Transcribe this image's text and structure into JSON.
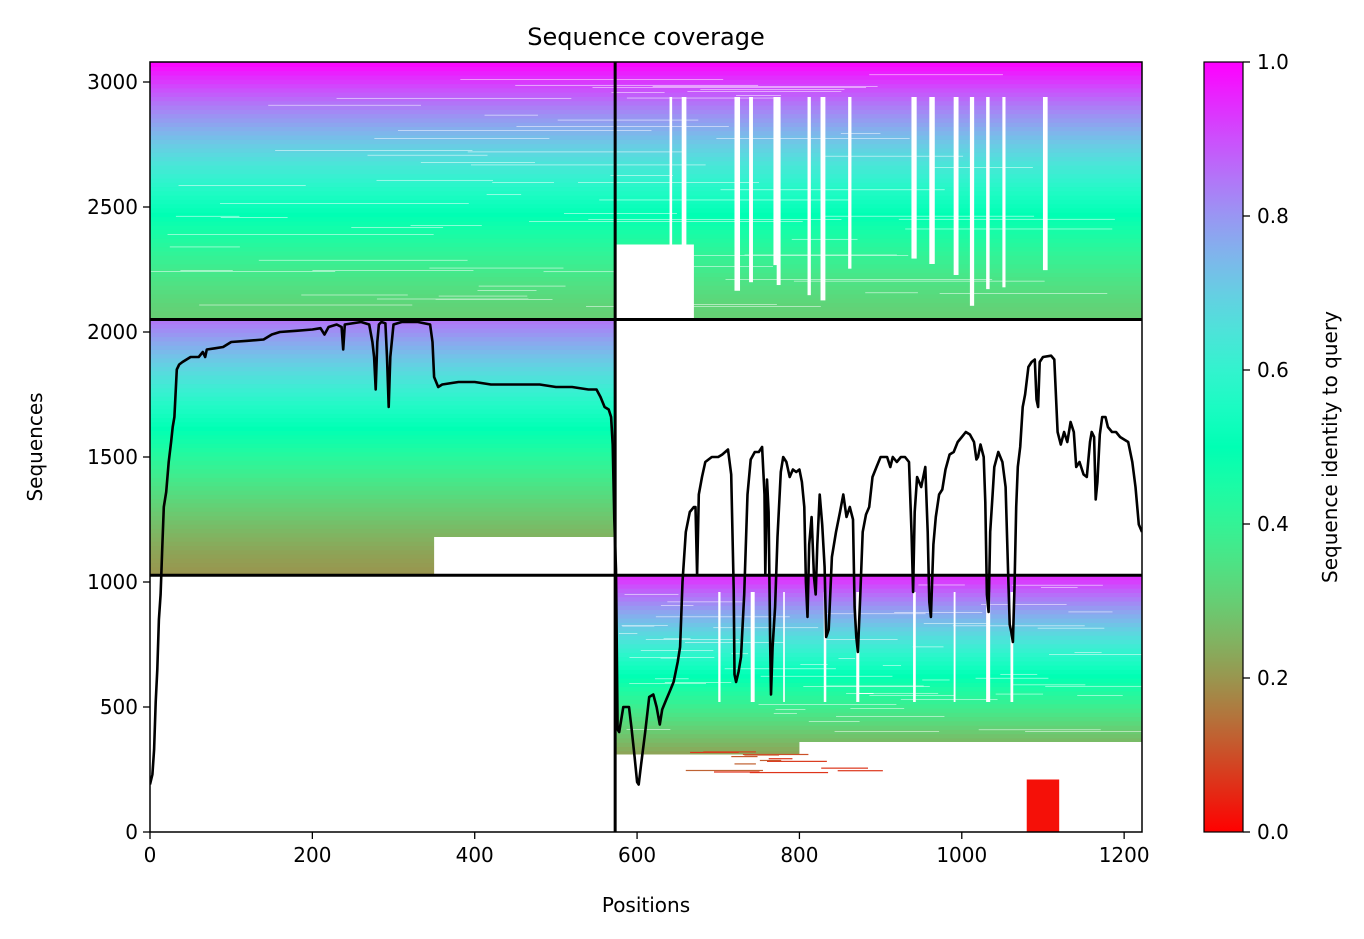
{
  "chart_data": {
    "type": "heatmap",
    "title": "Sequence coverage",
    "xlabel": "Positions",
    "ylabel": "Sequences",
    "xlim": [
      0,
      1222
    ],
    "ylim": [
      0,
      3080
    ],
    "x_ticks": [
      0,
      200,
      400,
      600,
      800,
      1000,
      1200
    ],
    "y_ticks": [
      0,
      500,
      1000,
      1500,
      2000,
      2500,
      3000
    ],
    "x_tick_labels": [
      "0",
      "200",
      "400",
      "600",
      "800",
      "1000",
      "1200"
    ],
    "y_tick_labels": [
      "0",
      "500",
      "1000",
      "1500",
      "2000",
      "2500",
      "3000"
    ],
    "colorbar": {
      "label": "Sequence identity to query",
      "colormap": "rainbow_r",
      "range": [
        0.0,
        1.0
      ],
      "ticks": [
        0.0,
        0.2,
        0.4,
        0.6,
        0.8,
        1.0
      ],
      "tick_labels": [
        "0.0",
        "0.2",
        "0.4",
        "0.6",
        "0.8",
        "1.0"
      ]
    },
    "chain_boundary_position": 573,
    "block_boundaries_sequences": [
      1027,
      2050
    ],
    "blocks": [
      {
        "name": "chain-A-only",
        "x": [
          0,
          573
        ],
        "y": [
          1027,
          2050
        ],
        "identity_top": 0.85,
        "identity_bottom": 0.2
      },
      {
        "name": "chain-B-only",
        "x": [
          573,
          1222
        ],
        "y": [
          0,
          1027
        ],
        "identity_top": 0.95,
        "identity_bottom": 0.05
      },
      {
        "name": "paired-A",
        "x": [
          0,
          573
        ],
        "y": [
          2050,
          3080
        ],
        "identity_top": 1.0,
        "identity_bottom": 0.3
      },
      {
        "name": "paired-B",
        "x": [
          573,
          1222
        ],
        "y": [
          2050,
          3080
        ],
        "identity_top": 1.0,
        "identity_bottom": 0.3
      }
    ],
    "coverage_line": {
      "color": "#000000",
      "points": [
        [
          0,
          190
        ],
        [
          3,
          230
        ],
        [
          5,
          330
        ],
        [
          7,
          520
        ],
        [
          9,
          650
        ],
        [
          11,
          850
        ],
        [
          13,
          950
        ],
        [
          15,
          1130
        ],
        [
          17,
          1300
        ],
        [
          20,
          1360
        ],
        [
          23,
          1480
        ],
        [
          26,
          1560
        ],
        [
          28,
          1620
        ],
        [
          30,
          1660
        ],
        [
          33,
          1850
        ],
        [
          36,
          1870
        ],
        [
          40,
          1880
        ],
        [
          50,
          1900
        ],
        [
          60,
          1900
        ],
        [
          65,
          1920
        ],
        [
          68,
          1900
        ],
        [
          70,
          1930
        ],
        [
          80,
          1935
        ],
        [
          90,
          1940
        ],
        [
          100,
          1960
        ],
        [
          120,
          1965
        ],
        [
          140,
          1970
        ],
        [
          150,
          1990
        ],
        [
          160,
          2000
        ],
        [
          180,
          2005
        ],
        [
          200,
          2010
        ],
        [
          210,
          2015
        ],
        [
          215,
          1990
        ],
        [
          220,
          2020
        ],
        [
          230,
          2030
        ],
        [
          236,
          2020
        ],
        [
          238,
          1930
        ],
        [
          240,
          2030
        ],
        [
          260,
          2040
        ],
        [
          270,
          2030
        ],
        [
          274,
          1960
        ],
        [
          276,
          1900
        ],
        [
          278,
          1770
        ],
        [
          280,
          1960
        ],
        [
          282,
          2030
        ],
        [
          285,
          2040
        ],
        [
          290,
          2035
        ],
        [
          292,
          1900
        ],
        [
          294,
          1700
        ],
        [
          296,
          1900
        ],
        [
          300,
          2030
        ],
        [
          310,
          2040
        ],
        [
          330,
          2040
        ],
        [
          345,
          2030
        ],
        [
          348,
          1960
        ],
        [
          350,
          1820
        ],
        [
          355,
          1780
        ],
        [
          360,
          1790
        ],
        [
          380,
          1800
        ],
        [
          400,
          1800
        ],
        [
          420,
          1790
        ],
        [
          450,
          1790
        ],
        [
          480,
          1790
        ],
        [
          500,
          1780
        ],
        [
          520,
          1780
        ],
        [
          540,
          1770
        ],
        [
          550,
          1770
        ],
        [
          555,
          1740
        ],
        [
          560,
          1700
        ],
        [
          565,
          1690
        ],
        [
          568,
          1660
        ],
        [
          570,
          1550
        ],
        [
          572,
          1250
        ],
        [
          574,
          1050
        ],
        [
          576,
          410
        ],
        [
          578,
          400
        ],
        [
          583,
          500
        ],
        [
          590,
          500
        ],
        [
          593,
          420
        ],
        [
          597,
          300
        ],
        [
          600,
          200
        ],
        [
          602,
          190
        ],
        [
          605,
          270
        ],
        [
          610,
          400
        ],
        [
          615,
          540
        ],
        [
          620,
          550
        ],
        [
          624,
          500
        ],
        [
          628,
          430
        ],
        [
          631,
          490
        ],
        [
          636,
          530
        ],
        [
          640,
          560
        ],
        [
          645,
          600
        ],
        [
          650,
          680
        ],
        [
          653,
          740
        ],
        [
          656,
          1000
        ],
        [
          660,
          1200
        ],
        [
          665,
          1280
        ],
        [
          670,
          1300
        ],
        [
          672,
          1300
        ],
        [
          674,
          1030
        ],
        [
          676,
          1350
        ],
        [
          680,
          1420
        ],
        [
          684,
          1480
        ],
        [
          688,
          1490
        ],
        [
          692,
          1500
        ],
        [
          700,
          1500
        ],
        [
          705,
          1510
        ],
        [
          712,
          1530
        ],
        [
          716,
          1430
        ],
        [
          719,
          970
        ],
        [
          720,
          630
        ],
        [
          722,
          600
        ],
        [
          725,
          640
        ],
        [
          728,
          700
        ],
        [
          732,
          950
        ],
        [
          736,
          1350
        ],
        [
          740,
          1490
        ],
        [
          745,
          1520
        ],
        [
          750,
          1520
        ],
        [
          754,
          1540
        ],
        [
          757,
          1350
        ],
        [
          758,
          1030
        ],
        [
          760,
          1410
        ],
        [
          762,
          1280
        ],
        [
          764,
          750
        ],
        [
          765,
          550
        ],
        [
          767,
          740
        ],
        [
          770,
          900
        ],
        [
          773,
          1180
        ],
        [
          777,
          1440
        ],
        [
          780,
          1500
        ],
        [
          784,
          1480
        ],
        [
          788,
          1420
        ],
        [
          792,
          1450
        ],
        [
          796,
          1440
        ],
        [
          800,
          1450
        ],
        [
          803,
          1400
        ],
        [
          806,
          1300
        ],
        [
          808,
          1000
        ],
        [
          810,
          860
        ],
        [
          812,
          1150
        ],
        [
          815,
          1260
        ],
        [
          818,
          1020
        ],
        [
          820,
          950
        ],
        [
          822,
          1150
        ],
        [
          825,
          1350
        ],
        [
          828,
          1230
        ],
        [
          831,
          1060
        ],
        [
          833,
          780
        ],
        [
          836,
          810
        ],
        [
          840,
          1100
        ],
        [
          845,
          1200
        ],
        [
          850,
          1280
        ],
        [
          854,
          1350
        ],
        [
          858,
          1260
        ],
        [
          862,
          1300
        ],
        [
          866,
          1250
        ],
        [
          868,
          900
        ],
        [
          870,
          780
        ],
        [
          872,
          720
        ],
        [
          875,
          950
        ],
        [
          878,
          1200
        ],
        [
          882,
          1270
        ],
        [
          886,
          1300
        ],
        [
          890,
          1420
        ],
        [
          895,
          1460
        ],
        [
          900,
          1500
        ],
        [
          908,
          1500
        ],
        [
          912,
          1460
        ],
        [
          915,
          1500
        ],
        [
          920,
          1480
        ],
        [
          925,
          1500
        ],
        [
          930,
          1500
        ],
        [
          935,
          1480
        ],
        [
          938,
          1200
        ],
        [
          940,
          960
        ],
        [
          942,
          1280
        ],
        [
          945,
          1420
        ],
        [
          950,
          1380
        ],
        [
          955,
          1460
        ],
        [
          958,
          1200
        ],
        [
          960,
          920
        ],
        [
          962,
          860
        ],
        [
          965,
          1150
        ],
        [
          968,
          1260
        ],
        [
          972,
          1350
        ],
        [
          976,
          1370
        ],
        [
          980,
          1450
        ],
        [
          985,
          1510
        ],
        [
          990,
          1520
        ],
        [
          995,
          1560
        ],
        [
          1000,
          1580
        ],
        [
          1005,
          1600
        ],
        [
          1010,
          1590
        ],
        [
          1015,
          1560
        ],
        [
          1018,
          1490
        ],
        [
          1020,
          1500
        ],
        [
          1023,
          1550
        ],
        [
          1027,
          1500
        ],
        [
          1029,
          1320
        ],
        [
          1031,
          950
        ],
        [
          1033,
          880
        ],
        [
          1035,
          1200
        ],
        [
          1038,
          1350
        ],
        [
          1040,
          1460
        ],
        [
          1045,
          1520
        ],
        [
          1050,
          1480
        ],
        [
          1054,
          1380
        ],
        [
          1057,
          1040
        ],
        [
          1059,
          830
        ],
        [
          1061,
          800
        ],
        [
          1063,
          760
        ],
        [
          1065,
          980
        ],
        [
          1067,
          1300
        ],
        [
          1069,
          1460
        ],
        [
          1072,
          1540
        ],
        [
          1075,
          1700
        ],
        [
          1078,
          1750
        ],
        [
          1082,
          1860
        ],
        [
          1086,
          1880
        ],
        [
          1090,
          1890
        ],
        [
          1092,
          1730
        ],
        [
          1094,
          1700
        ],
        [
          1096,
          1880
        ],
        [
          1100,
          1900
        ],
        [
          1110,
          1905
        ],
        [
          1114,
          1890
        ],
        [
          1118,
          1600
        ],
        [
          1122,
          1550
        ],
        [
          1126,
          1600
        ],
        [
          1130,
          1560
        ],
        [
          1134,
          1640
        ],
        [
          1138,
          1600
        ],
        [
          1141,
          1460
        ],
        [
          1145,
          1480
        ],
        [
          1150,
          1430
        ],
        [
          1154,
          1420
        ],
        [
          1158,
          1560
        ],
        [
          1160,
          1600
        ],
        [
          1163,
          1580
        ],
        [
          1165,
          1330
        ],
        [
          1167,
          1400
        ],
        [
          1170,
          1590
        ],
        [
          1173,
          1660
        ],
        [
          1177,
          1660
        ],
        [
          1180,
          1620
        ],
        [
          1185,
          1600
        ],
        [
          1190,
          1600
        ],
        [
          1195,
          1580
        ],
        [
          1200,
          1570
        ],
        [
          1205,
          1560
        ],
        [
          1210,
          1480
        ],
        [
          1214,
          1380
        ],
        [
          1218,
          1230
        ],
        [
          1222,
          1200
        ]
      ]
    }
  }
}
